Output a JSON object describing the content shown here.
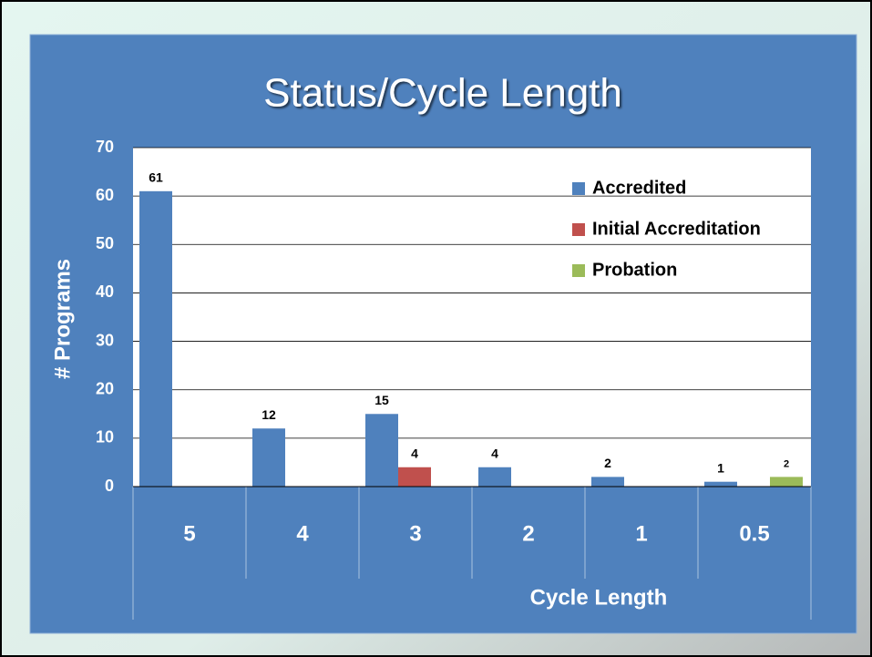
{
  "chart_data": {
    "type": "bar",
    "title": "Status/Cycle Length",
    "x_label": "Cycle Length",
    "y_label": "# Programs",
    "categories": [
      "5",
      "4",
      "3",
      "2",
      "1",
      "0.5"
    ],
    "series": [
      {
        "name": "Accredited",
        "color": "#4f81bd",
        "values": [
          61,
          12,
          15,
          4,
          2,
          1
        ]
      },
      {
        "name": "Initial Accreditation",
        "color": "#c0504d",
        "values": [
          null,
          null,
          4,
          null,
          null,
          null
        ]
      },
      {
        "name": "Probation",
        "color": "#9bbb59",
        "values": [
          null,
          null,
          null,
          null,
          null,
          2
        ]
      }
    ],
    "ylim": [
      0,
      70
    ],
    "yticks": [
      0,
      10,
      20,
      30,
      40,
      50,
      60,
      70
    ],
    "grid": true,
    "legend": "upper right"
  }
}
